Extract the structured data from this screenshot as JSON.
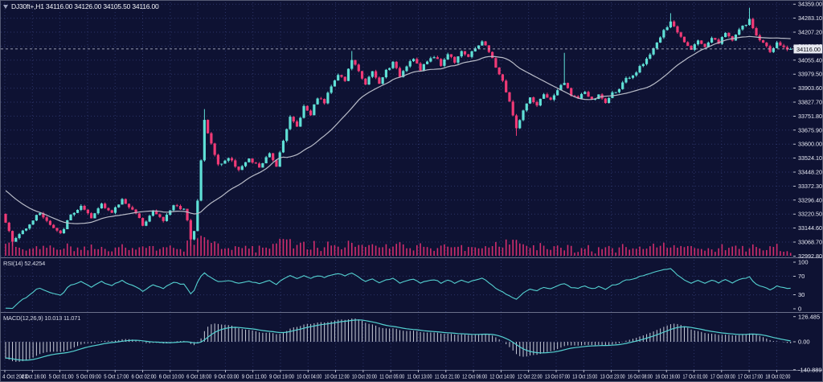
{
  "header": {
    "title": "DJ30ft+,H1 34116.00 34126.00 34105.50 34116.00",
    "symbol": "DJ30ft+",
    "timeframe": "H1",
    "ohlc": {
      "open": "34116.00",
      "high": "34126.00",
      "low": "34105.50",
      "close": "34116.00"
    }
  },
  "price_axis": {
    "current_price": "34116.00",
    "ticks": [
      "34359.00",
      "34283.10",
      "34207.20",
      "34131.30",
      "34055.40",
      "33979.50",
      "33903.60",
      "33827.70",
      "33751.80",
      "33675.90",
      "33600.00",
      "33524.10",
      "33448.20",
      "33372.30",
      "33296.40",
      "33220.50",
      "33144.60",
      "33068.70",
      "32992.80"
    ]
  },
  "time_axis": {
    "labels": [
      "4 Oct 2023",
      "4 Oct 16:00",
      "5 Oct 01:00",
      "5 Oct 09:00",
      "5 Oct 17:00",
      "6 Oct 02:00",
      "6 Oct 10:00",
      "6 Oct 18:00",
      "9 Oct 03:00",
      "9 Oct 11:00",
      "9 Oct 19:00",
      "10 Oct 04:00",
      "10 Oct 12:00",
      "10 Oct 20:00",
      "11 Oct 05:00",
      "11 Oct 13:00",
      "11 Oct 21:00",
      "12 Oct 06:00",
      "12 Oct 14:00",
      "12 Oct 22:00",
      "13 Oct 07:00",
      "13 Oct 15:00",
      "13 Oct 23:00",
      "16 Oct 08:00",
      "16 Oct 16:00",
      "17 Oct 01:00",
      "17 Oct 09:00",
      "17 Oct 17:00",
      "18 Oct 02:00"
    ]
  },
  "indicators": {
    "rsi": {
      "label": "RSI(14) 52.4254",
      "period": 14,
      "value": "52.4254",
      "axis_ticks": [
        "100",
        "70",
        "30",
        "0"
      ],
      "levels": [
        30,
        70
      ]
    },
    "macd": {
      "label": "MACD(12,26,9) 10.013 11.071",
      "fast": 12,
      "slow": 26,
      "signal": 9,
      "values": [
        "10.013",
        "11.071"
      ],
      "axis_ticks": [
        "126.485",
        "0.00",
        "-140.889"
      ]
    }
  },
  "colors": {
    "bg": "#0e1233",
    "grid": "#2c3468",
    "bull": "#5fe0d6",
    "bear": "#f03a76",
    "ma": "#b9bcc8",
    "volume": "#d12d6d",
    "rsi": "#54d1d1",
    "macd_line": "#54d1d1",
    "macd_hist": "#c9cdd9",
    "axis_text": "#e9ebf5",
    "separator": "#6a6f8a",
    "price_line": "#c3c6d4",
    "price_box_bg": "#e6e8f0",
    "price_box_text": "#05070f"
  },
  "chart_data": {
    "type": "candlestick",
    "title": "DJ30ft+ Dow Jones 30 futures, H1 timeframe with volume, 24-period MA, RSI(14) and MACD(12,26,9)",
    "symbol": "DJ30ft+",
    "timeframe": "H1",
    "x_range": [
      "4 Oct 2023",
      "18 Oct 02:00"
    ],
    "ylim": [
      32992.8,
      34359.0
    ],
    "current_bar_ohlc": [
      34116.0,
      34126.0,
      34105.5,
      34116.0
    ],
    "bar_count": 230,
    "bars_per_gridline": 8,
    "ma_period": 24,
    "legend_position": "none",
    "grid": true,
    "price_anchors": [
      [
        0,
        33180
      ],
      [
        2,
        33070
      ],
      [
        4,
        33110
      ],
      [
        7,
        33170
      ],
      [
        10,
        33230
      ],
      [
        13,
        33160
      ],
      [
        16,
        33110
      ],
      [
        19,
        33215
      ],
      [
        22,
        33260
      ],
      [
        25,
        33195
      ],
      [
        28,
        33280
      ],
      [
        31,
        33225
      ],
      [
        34,
        33300
      ],
      [
        37,
        33245
      ],
      [
        40,
        33165
      ],
      [
        43,
        33235
      ],
      [
        46,
        33185
      ],
      [
        49,
        33270
      ],
      [
        52,
        33245
      ],
      [
        53,
        33195
      ],
      [
        54,
        33090
      ],
      [
        55,
        33130
      ],
      [
        56,
        33290
      ],
      [
        57,
        33510
      ],
      [
        58,
        33730
      ],
      [
        60,
        33600
      ],
      [
        62,
        33485
      ],
      [
        65,
        33525
      ],
      [
        68,
        33465
      ],
      [
        71,
        33515
      ],
      [
        74,
        33475
      ],
      [
        77,
        33545
      ],
      [
        79,
        33485
      ],
      [
        81,
        33625
      ],
      [
        83,
        33745
      ],
      [
        85,
        33695
      ],
      [
        87,
        33805
      ],
      [
        89,
        33765
      ],
      [
        91,
        33855
      ],
      [
        93,
        33825
      ],
      [
        95,
        33920
      ],
      [
        97,
        33980
      ],
      [
        99,
        33945
      ],
      [
        101,
        34060
      ],
      [
        103,
        33990
      ],
      [
        105,
        33930
      ],
      [
        107,
        33990
      ],
      [
        109,
        33925
      ],
      [
        111,
        34000
      ],
      [
        113,
        34040
      ],
      [
        115,
        33970
      ],
      [
        117,
        34030
      ],
      [
        119,
        34070
      ],
      [
        121,
        34000
      ],
      [
        123,
        34050
      ],
      [
        125,
        34080
      ],
      [
        127,
        34030
      ],
      [
        129,
        34090
      ],
      [
        131,
        34050
      ],
      [
        133,
        34110
      ],
      [
        135,
        34070
      ],
      [
        137,
        34120
      ],
      [
        139,
        34160
      ],
      [
        141,
        34100
      ],
      [
        143,
        34020
      ],
      [
        145,
        33940
      ],
      [
        147,
        33830
      ],
      [
        149,
        33680
      ],
      [
        151,
        33785
      ],
      [
        153,
        33845
      ],
      [
        155,
        33805
      ],
      [
        157,
        33875
      ],
      [
        159,
        33835
      ],
      [
        161,
        33895
      ],
      [
        163,
        33930
      ],
      [
        165,
        33870
      ],
      [
        167,
        33845
      ],
      [
        169,
        33885
      ],
      [
        171,
        33835
      ],
      [
        173,
        33865
      ],
      [
        175,
        33825
      ],
      [
        177,
        33875
      ],
      [
        179,
        33905
      ],
      [
        181,
        33950
      ],
      [
        183,
        33965
      ],
      [
        186,
        34040
      ],
      [
        189,
        34120
      ],
      [
        192,
        34210
      ],
      [
        194,
        34260
      ],
      [
        196,
        34210
      ],
      [
        198,
        34160
      ],
      [
        200,
        34120
      ],
      [
        202,
        34160
      ],
      [
        204,
        34130
      ],
      [
        206,
        34180
      ],
      [
        208,
        34150
      ],
      [
        210,
        34200
      ],
      [
        212,
        34170
      ],
      [
        214,
        34220
      ],
      [
        216,
        34250
      ],
      [
        217,
        34270
      ],
      [
        219,
        34190
      ],
      [
        221,
        34150
      ],
      [
        223,
        34100
      ],
      [
        225,
        34150
      ],
      [
        227,
        34120
      ],
      [
        229,
        34116
      ]
    ],
    "wick_events": [
      [
        2,
        "low",
        33048
      ],
      [
        54,
        "low",
        33046
      ],
      [
        58,
        "high",
        33790
      ],
      [
        101,
        "high",
        34105
      ],
      [
        149,
        "low",
        33645
      ],
      [
        163,
        "high",
        34095
      ],
      [
        194,
        "high",
        34310
      ],
      [
        217,
        "high",
        34340
      ]
    ]
  }
}
